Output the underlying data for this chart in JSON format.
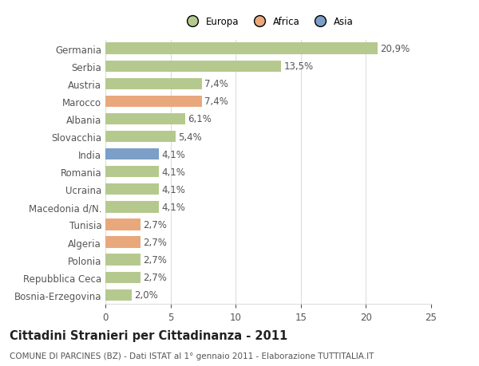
{
  "categories": [
    "Germania",
    "Serbia",
    "Austria",
    "Marocco",
    "Albania",
    "Slovacchia",
    "India",
    "Romania",
    "Ucraina",
    "Macedonia d/N.",
    "Tunisia",
    "Algeria",
    "Polonia",
    "Repubblica Ceca",
    "Bosnia-Erzegovina"
  ],
  "values": [
    20.9,
    13.5,
    7.4,
    7.4,
    6.1,
    5.4,
    4.1,
    4.1,
    4.1,
    4.1,
    2.7,
    2.7,
    2.7,
    2.7,
    2.0
  ],
  "labels": [
    "20,9%",
    "13,5%",
    "7,4%",
    "7,4%",
    "6,1%",
    "5,4%",
    "4,1%",
    "4,1%",
    "4,1%",
    "4,1%",
    "2,7%",
    "2,7%",
    "2,7%",
    "2,7%",
    "2,0%"
  ],
  "colors": [
    "#b5c98e",
    "#b5c98e",
    "#b5c98e",
    "#e8a87c",
    "#b5c98e",
    "#b5c98e",
    "#7b9fc7",
    "#b5c98e",
    "#b5c98e",
    "#b5c98e",
    "#e8a87c",
    "#e8a87c",
    "#b5c98e",
    "#b5c98e",
    "#b5c98e"
  ],
  "legend_labels": [
    "Europa",
    "Africa",
    "Asia"
  ],
  "legend_colors": [
    "#b5c98e",
    "#e8a87c",
    "#7b9fc7"
  ],
  "title": "Cittadini Stranieri per Cittadinanza - 2011",
  "subtitle": "COMUNE DI PARCINES (BZ) - Dati ISTAT al 1° gennaio 2011 - Elaborazione TUTTITALIA.IT",
  "xlim": [
    0,
    25
  ],
  "xticks": [
    0,
    5,
    10,
    15,
    20,
    25
  ],
  "background_color": "#ffffff",
  "bar_height": 0.65,
  "grid_color": "#dddddd",
  "text_color": "#555555",
  "label_fontsize": 8.5,
  "title_fontsize": 10.5,
  "subtitle_fontsize": 7.5
}
